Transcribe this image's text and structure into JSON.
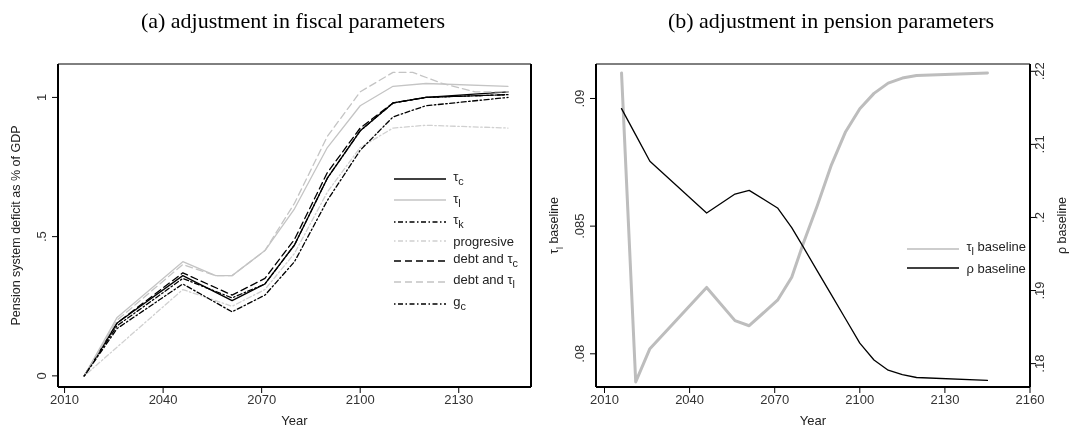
{
  "chart_data": [
    {
      "type": "line",
      "title": "(a) adjustment in fiscal parameters",
      "xlabel": "Year",
      "ylabel": "Pension system deficit as % of GDP",
      "xlim": [
        2008,
        2152
      ],
      "xticks": [
        2010,
        2040,
        2070,
        2100,
        2130
      ],
      "ylim": [
        -0.04,
        1.12
      ],
      "yticks": [
        0,
        {
          "value": 0.5,
          "label": ".5"
        },
        1
      ],
      "legend": "right",
      "marker": "none",
      "series": [
        {
          "name": "τ$_{c}$",
          "color": "#000000",
          "line_style": "solid",
          "x": [
            2016,
            2026,
            2046,
            2061,
            2071,
            2080,
            2090,
            2100,
            2110,
            2120,
            2145
          ],
          "values": [
            0,
            0.19,
            0.36,
            0.27,
            0.33,
            0.47,
            0.71,
            0.88,
            0.98,
            1.0,
            1.02
          ]
        },
        {
          "name": "τ$_{l}$",
          "color": "#c4c4c4",
          "line_style": "solid",
          "x": [
            2016,
            2026,
            2046,
            2056,
            2061,
            2071,
            2080,
            2090,
            2100,
            2110,
            2120,
            2145
          ],
          "values": [
            0,
            0.21,
            0.41,
            0.36,
            0.36,
            0.45,
            0.6,
            0.82,
            0.97,
            1.04,
            1.05,
            1.04
          ]
        },
        {
          "name": "τ$_{k}$",
          "color": "#000000",
          "line_style": "dotted",
          "x": [
            2016,
            2026,
            2046,
            2061,
            2071,
            2080,
            2090,
            2100,
            2110,
            2120,
            2145
          ],
          "values": [
            0,
            0.18,
            0.35,
            0.28,
            0.33,
            0.47,
            0.71,
            0.88,
            0.98,
            1.0,
            1.01
          ]
        },
        {
          "name": "progresive",
          "color": "#d0d0d0",
          "line_style": "dotted",
          "x": [
            2016,
            2046,
            2061,
            2071,
            2080,
            2090,
            2100,
            2110,
            2120,
            2145
          ],
          "values": [
            0,
            0.31,
            0.25,
            0.31,
            0.44,
            0.66,
            0.82,
            0.89,
            0.9,
            0.89
          ]
        },
        {
          "name": "debt and τ$_{c}$",
          "color": "#000000",
          "line_style": "dashed",
          "x": [
            2016,
            2026,
            2046,
            2061,
            2071,
            2080,
            2090,
            2100,
            2110,
            2120,
            2145
          ],
          "values": [
            0,
            0.19,
            0.37,
            0.29,
            0.35,
            0.49,
            0.73,
            0.89,
            0.98,
            1.0,
            1.01
          ]
        },
        {
          "name": "debt and τ$_{l}$",
          "color": "#c4c4c4",
          "line_style": "dashed",
          "x": [
            2016,
            2026,
            2046,
            2056,
            2061,
            2071,
            2080,
            2090,
            2100,
            2110,
            2116,
            2125,
            2135,
            2145
          ],
          "values": [
            0,
            0.2,
            0.4,
            0.36,
            0.36,
            0.45,
            0.62,
            0.86,
            1.02,
            1.09,
            1.09,
            1.05,
            1.02,
            1.02
          ]
        },
        {
          "name": "g$_{c}$",
          "color": "#000000",
          "line_style": "dotted",
          "x": [
            2016,
            2026,
            2046,
            2061,
            2071,
            2080,
            2090,
            2100,
            2110,
            2120,
            2145
          ],
          "values": [
            0,
            0.17,
            0.33,
            0.23,
            0.29,
            0.41,
            0.63,
            0.81,
            0.93,
            0.97,
            1.0
          ]
        }
      ]
    },
    {
      "type": "line",
      "title": "(b) adjustment in pension parameters",
      "xlabel": "Year",
      "ylabel": "τ$_{l}$ baseline",
      "y2label": "ρ baseline",
      "xlim": [
        2007,
        2160
      ],
      "xticks": [
        2010,
        2040,
        2070,
        2100,
        2130,
        2160
      ],
      "ylim": [
        0.0787,
        0.09135
      ],
      "yticks": [
        {
          "value": 0.08,
          "label": ".08"
        },
        {
          "value": 0.085,
          "label": ".085"
        },
        {
          "value": 0.09,
          "label": ".09"
        }
      ],
      "y2lim": [
        0.1768,
        0.221
      ],
      "y2ticks": [
        {
          "value": 0.18,
          "label": ".18"
        },
        {
          "value": 0.19,
          "label": ".19"
        },
        {
          "value": 0.2,
          "label": ".2"
        },
        {
          "value": 0.21,
          "label": ".21"
        },
        {
          "value": 0.22,
          "label": ".22"
        }
      ],
      "legend": "right",
      "marker": "none",
      "series": [
        {
          "name": "τ$_{l}$ baseline",
          "color": "#bdbdbd",
          "line_style": "solid",
          "x": [
            2016,
            2021,
            2026,
            2046,
            2056,
            2061,
            2071,
            2076,
            2080,
            2085,
            2090,
            2095,
            2100,
            2105,
            2110,
            2115,
            2120,
            2145
          ],
          "values": [
            0.091,
            0.0789,
            0.0802,
            0.0826,
            0.0813,
            0.0811,
            0.0821,
            0.083,
            0.0843,
            0.0858,
            0.0874,
            0.0887,
            0.0896,
            0.0902,
            0.0906,
            0.0908,
            0.0909,
            0.091
          ]
        },
        {
          "name": "ρ baseline",
          "color": "#000000",
          "line_style": "solid",
          "axis": "y2",
          "x": [
            2016,
            2021,
            2026,
            2046,
            2056,
            2061,
            2071,
            2076,
            2080,
            2085,
            2090,
            2095,
            2100,
            2105,
            2110,
            2115,
            2120,
            2145
          ],
          "values": [
            0.2149,
            0.2113,
            0.2077,
            0.2006,
            0.2032,
            0.2037,
            0.2013,
            0.1986,
            0.196,
            0.1927,
            0.1894,
            0.1861,
            0.1828,
            0.1805,
            0.1791,
            0.1785,
            0.1781,
            0.1777
          ]
        }
      ]
    }
  ]
}
